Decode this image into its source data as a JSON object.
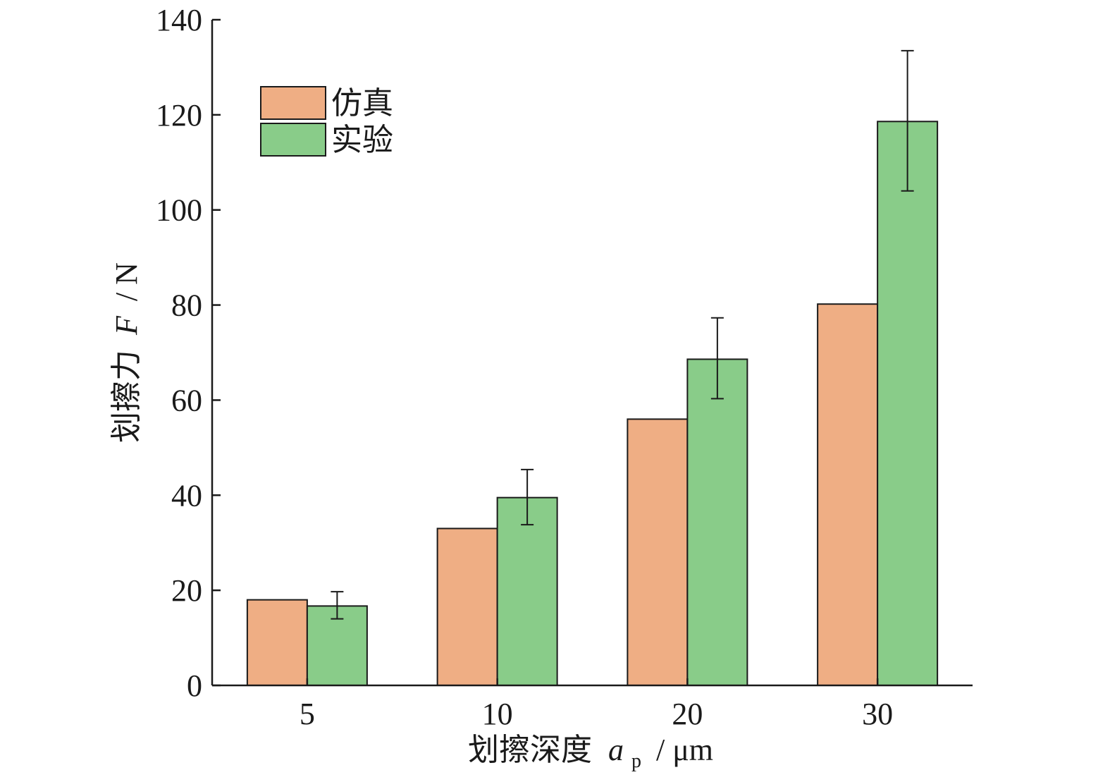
{
  "chart_data": {
    "type": "bar",
    "xlabel": "划擦深度",
    "xlabel_symbol": "a",
    "xlabel_subscript": "p",
    "xlabel_unit": "/ μm",
    "ylabel": "划擦力",
    "ylabel_symbol": "F",
    "ylabel_unit": "/ N",
    "ylim": [
      0,
      140
    ],
    "yticks": [
      0,
      20,
      40,
      60,
      80,
      100,
      120,
      140
    ],
    "categories": [
      "5",
      "10",
      "20",
      "30"
    ],
    "series": [
      {
        "name": "仿真",
        "color": "#EFAE84",
        "values": [
          18,
          33,
          56,
          80.2
        ]
      },
      {
        "name": "实验",
        "color": "#89CC89",
        "values": [
          16.7,
          39.5,
          68.6,
          118.6
        ],
        "error": [
          [
            14,
            19.7
          ],
          [
            33.8,
            45.4
          ],
          [
            60.3,
            77.3
          ],
          [
            104,
            133.5
          ]
        ]
      }
    ],
    "legend_position": "top-left",
    "grid": false
  }
}
